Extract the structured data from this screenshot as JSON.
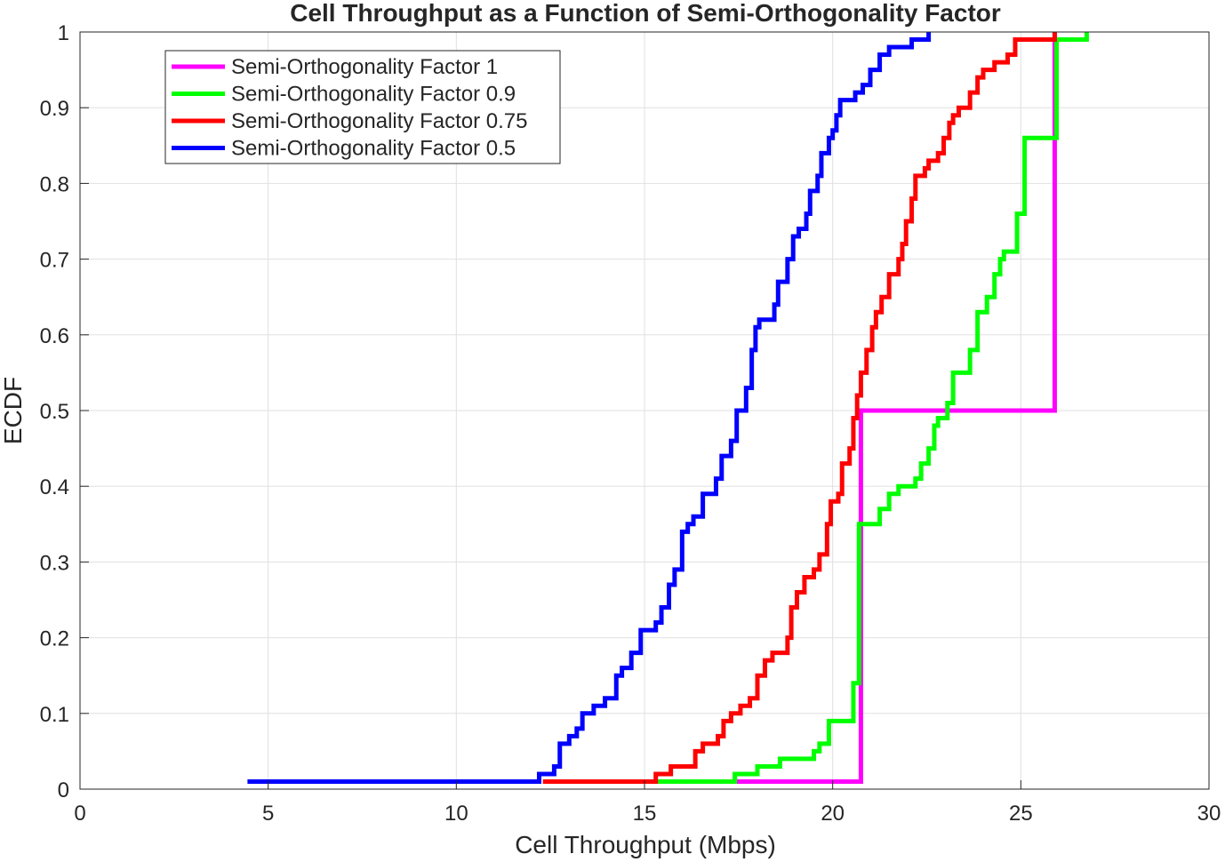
{
  "chart_data": {
    "type": "line",
    "step": true,
    "title": "Cell Throughput as a Function of Semi-Orthogonality Factor",
    "xlabel": "Cell Throughput (Mbps)",
    "ylabel": "ECDF",
    "xlim": [
      0,
      30
    ],
    "ylim": [
      0,
      1
    ],
    "xticks": [
      0,
      5,
      10,
      15,
      20,
      25,
      30
    ],
    "yticks": [
      0,
      0.1,
      0.2,
      0.3,
      0.4,
      0.5,
      0.6,
      0.7,
      0.8,
      0.9,
      1
    ],
    "grid": true,
    "legend_position": "top-left",
    "series": [
      {
        "name": "Semi-Orthogonality Factor 1",
        "color": "#ff00ff",
        "points": [
          [
            17.4,
            0.01
          ],
          [
            20.75,
            0.5
          ],
          [
            25.9,
            1.0
          ]
        ]
      },
      {
        "name": "Semi-Orthogonality Factor 0.9",
        "color": "#00ff00",
        "points": [
          [
            15.35,
            0.01
          ],
          [
            17.4,
            0.02
          ],
          [
            18.0,
            0.03
          ],
          [
            18.6,
            0.04
          ],
          [
            19.5,
            0.05
          ],
          [
            19.65,
            0.06
          ],
          [
            19.9,
            0.09
          ],
          [
            20.55,
            0.14
          ],
          [
            20.7,
            0.35
          ],
          [
            21.25,
            0.37
          ],
          [
            21.5,
            0.39
          ],
          [
            21.75,
            0.4
          ],
          [
            22.2,
            0.41
          ],
          [
            22.35,
            0.43
          ],
          [
            22.55,
            0.45
          ],
          [
            22.7,
            0.48
          ],
          [
            22.8,
            0.49
          ],
          [
            23.05,
            0.51
          ],
          [
            23.2,
            0.55
          ],
          [
            23.65,
            0.58
          ],
          [
            23.85,
            0.63
          ],
          [
            24.1,
            0.65
          ],
          [
            24.3,
            0.68
          ],
          [
            24.45,
            0.7
          ],
          [
            24.55,
            0.71
          ],
          [
            24.9,
            0.76
          ],
          [
            25.1,
            0.86
          ],
          [
            25.95,
            0.99
          ],
          [
            26.75,
            1.0
          ]
        ]
      },
      {
        "name": "Semi-Orthogonality Factor 0.75",
        "color": "#ff0000",
        "points": [
          [
            12.3,
            0.01
          ],
          [
            15.3,
            0.02
          ],
          [
            15.7,
            0.03
          ],
          [
            16.35,
            0.05
          ],
          [
            16.55,
            0.06
          ],
          [
            16.95,
            0.07
          ],
          [
            17.1,
            0.09
          ],
          [
            17.3,
            0.1
          ],
          [
            17.55,
            0.11
          ],
          [
            17.8,
            0.12
          ],
          [
            18.0,
            0.15
          ],
          [
            18.2,
            0.17
          ],
          [
            18.4,
            0.18
          ],
          [
            18.8,
            0.2
          ],
          [
            18.9,
            0.24
          ],
          [
            19.05,
            0.26
          ],
          [
            19.25,
            0.28
          ],
          [
            19.5,
            0.29
          ],
          [
            19.65,
            0.31
          ],
          [
            19.85,
            0.35
          ],
          [
            19.95,
            0.38
          ],
          [
            20.15,
            0.39
          ],
          [
            20.25,
            0.43
          ],
          [
            20.45,
            0.45
          ],
          [
            20.55,
            0.49
          ],
          [
            20.65,
            0.52
          ],
          [
            20.75,
            0.55
          ],
          [
            20.9,
            0.58
          ],
          [
            21.05,
            0.61
          ],
          [
            21.15,
            0.63
          ],
          [
            21.3,
            0.65
          ],
          [
            21.5,
            0.68
          ],
          [
            21.75,
            0.7
          ],
          [
            21.85,
            0.72
          ],
          [
            21.95,
            0.75
          ],
          [
            22.1,
            0.78
          ],
          [
            22.2,
            0.81
          ],
          [
            22.45,
            0.82
          ],
          [
            22.55,
            0.83
          ],
          [
            22.8,
            0.84
          ],
          [
            22.95,
            0.86
          ],
          [
            23.1,
            0.88
          ],
          [
            23.2,
            0.89
          ],
          [
            23.35,
            0.9
          ],
          [
            23.65,
            0.92
          ],
          [
            23.85,
            0.94
          ],
          [
            24.0,
            0.95
          ],
          [
            24.3,
            0.96
          ],
          [
            24.65,
            0.97
          ],
          [
            24.85,
            0.99
          ],
          [
            25.9,
            1.0
          ]
        ]
      },
      {
        "name": "Semi-Orthogonality Factor 0.5",
        "color": "#0000ff",
        "points": [
          [
            4.45,
            0.01
          ],
          [
            12.2,
            0.02
          ],
          [
            12.6,
            0.03
          ],
          [
            12.75,
            0.06
          ],
          [
            13.0,
            0.07
          ],
          [
            13.2,
            0.08
          ],
          [
            13.35,
            0.1
          ],
          [
            13.65,
            0.11
          ],
          [
            13.95,
            0.12
          ],
          [
            14.25,
            0.15
          ],
          [
            14.4,
            0.16
          ],
          [
            14.65,
            0.18
          ],
          [
            14.9,
            0.21
          ],
          [
            15.3,
            0.22
          ],
          [
            15.45,
            0.24
          ],
          [
            15.65,
            0.27
          ],
          [
            15.8,
            0.29
          ],
          [
            16.0,
            0.34
          ],
          [
            16.15,
            0.35
          ],
          [
            16.3,
            0.36
          ],
          [
            16.55,
            0.39
          ],
          [
            16.9,
            0.41
          ],
          [
            17.05,
            0.44
          ],
          [
            17.3,
            0.46
          ],
          [
            17.45,
            0.5
          ],
          [
            17.7,
            0.53
          ],
          [
            17.85,
            0.58
          ],
          [
            17.95,
            0.61
          ],
          [
            18.05,
            0.62
          ],
          [
            18.45,
            0.64
          ],
          [
            18.55,
            0.67
          ],
          [
            18.8,
            0.7
          ],
          [
            18.95,
            0.73
          ],
          [
            19.1,
            0.74
          ],
          [
            19.3,
            0.76
          ],
          [
            19.4,
            0.79
          ],
          [
            19.6,
            0.81
          ],
          [
            19.7,
            0.84
          ],
          [
            19.9,
            0.86
          ],
          [
            20.0,
            0.87
          ],
          [
            20.1,
            0.89
          ],
          [
            20.2,
            0.91
          ],
          [
            20.6,
            0.92
          ],
          [
            20.8,
            0.93
          ],
          [
            21.0,
            0.95
          ],
          [
            21.25,
            0.97
          ],
          [
            21.5,
            0.98
          ],
          [
            22.1,
            0.99
          ],
          [
            22.55,
            1.0
          ]
        ]
      }
    ]
  }
}
